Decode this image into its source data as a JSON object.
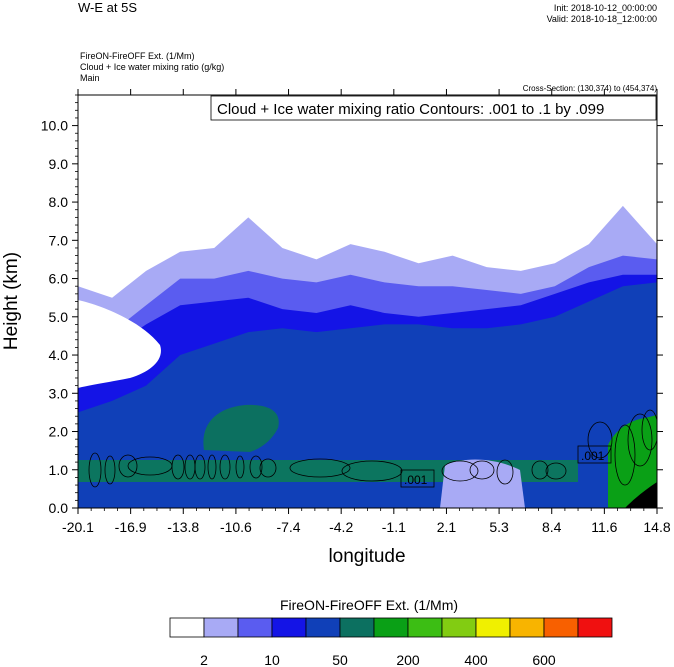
{
  "header": {
    "title": "W-E at 5S",
    "init": "Init: 2018-10-12_00:00:00",
    "valid": "Valid: 2018-10-18_12:00:00",
    "field_line1": "FireON-FireOFF Ext.   (1/Mm)",
    "field_line2": "Cloud + Ice water mixing ratio   (g/kg)",
    "field_line3": "Main",
    "cross_section": "Cross-Section: (130,374) to (454,374)"
  },
  "contour_box": "Cloud + Ice water mixing ratio Contours: .001 to .1 by .099",
  "contour_labels": [
    ".001",
    ".001"
  ],
  "colorbar": {
    "title": "FireON-FireOFF Ext.  (1/Mm)",
    "colors": [
      "#ffffff",
      "#a8aaf5",
      "#5a5cf0",
      "#1414e6",
      "#1040b8",
      "#0c7060",
      "#0aa016",
      "#3cbe14",
      "#82cc12",
      "#f0f000",
      "#f8b400",
      "#f86000",
      "#f01010"
    ],
    "tick_labels": [
      "2",
      "10",
      "50",
      "200",
      "400",
      "600"
    ]
  },
  "chart_data": {
    "type": "heatmap",
    "xlabel": "longitude",
    "ylabel": "Height (km)",
    "xticks": [
      "-20.1",
      "-16.9",
      "-13.8",
      "-10.6",
      "-7.4",
      "-4.2",
      "-1.1",
      "2.1",
      "5.3",
      "8.4",
      "11.6",
      "14.8"
    ],
    "yticks": [
      "0.0",
      "1.0",
      "2.0",
      "3.0",
      "4.0",
      "5.0",
      "6.0",
      "7.0",
      "8.0",
      "9.0",
      "10.0"
    ],
    "xlim": [
      -20.1,
      14.8
    ],
    "ylim": [
      0,
      10.8
    ],
    "grid": false,
    "layers": [
      {
        "level": "2",
        "color": "#a8aaf5",
        "top_km": [
          5.8,
          5.5,
          6.2,
          6.7,
          6.8,
          7.6,
          6.8,
          6.5,
          6.9,
          6.7,
          6.4,
          6.6,
          6.3,
          6.2,
          6.4,
          6.9,
          7.9,
          6.9
        ],
        "bottom_km": [
          0,
          0,
          0,
          0,
          0,
          0,
          0,
          0,
          0,
          0,
          0,
          0,
          0,
          0,
          0,
          0,
          0,
          0
        ]
      },
      {
        "level": "10",
        "color": "#5a5cf0",
        "top_km": [
          4.9,
          4.6,
          5.3,
          6.0,
          6.0,
          6.2,
          6.0,
          5.9,
          6.1,
          5.9,
          5.8,
          5.8,
          5.7,
          5.6,
          5.8,
          6.3,
          6.6,
          6.5
        ],
        "bottom_km": [
          0,
          0,
          0,
          0,
          0,
          0,
          0,
          0,
          0,
          0,
          0,
          0,
          0,
          0,
          0,
          0,
          0,
          0
        ]
      },
      {
        "level": "50",
        "color": "#1414e6",
        "top_km": [
          4.0,
          4.2,
          4.8,
          5.3,
          5.4,
          5.5,
          5.2,
          5.1,
          5.3,
          5.1,
          5.0,
          5.1,
          5.2,
          5.3,
          5.6,
          5.9,
          6.1,
          6.1
        ],
        "bottom_km": [
          0,
          0,
          0,
          0,
          0,
          0,
          0,
          0,
          0,
          0,
          0,
          0,
          0,
          0,
          0,
          0,
          0,
          0
        ]
      },
      {
        "level": "200",
        "color": "#1040b8",
        "top_km": [
          2.5,
          2.8,
          3.2,
          4.0,
          4.3,
          4.6,
          4.7,
          4.6,
          4.7,
          4.8,
          4.8,
          4.7,
          4.7,
          4.8,
          5.0,
          5.4,
          5.8,
          5.9
        ],
        "bottom_km": [
          0,
          0,
          0,
          0,
          0,
          0,
          0,
          0,
          0,
          0,
          0,
          0,
          0,
          0,
          0,
          0,
          0,
          0
        ]
      }
    ]
  }
}
